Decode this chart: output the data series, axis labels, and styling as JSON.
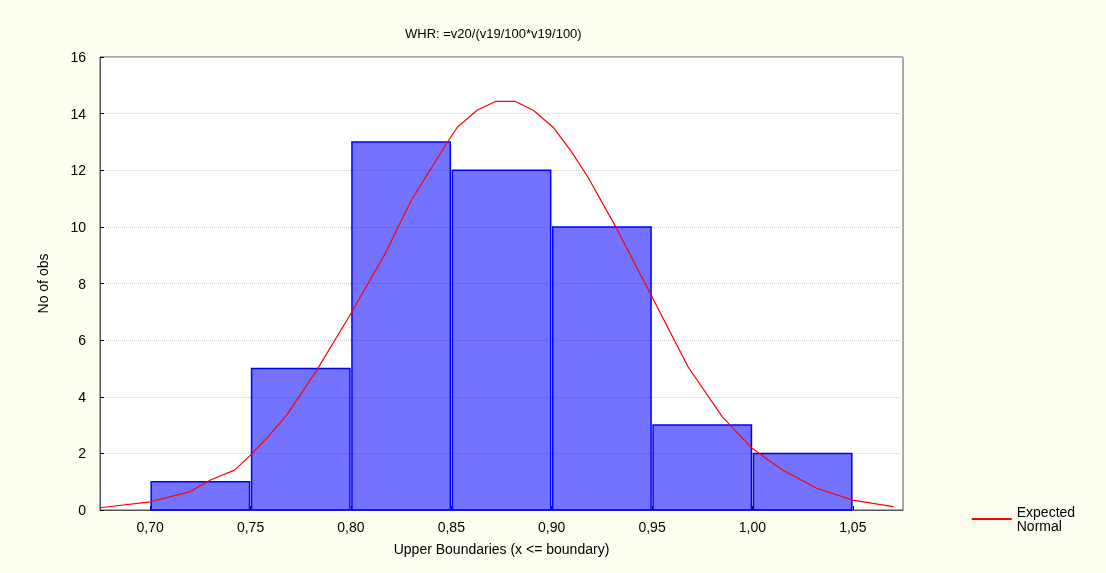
{
  "chart_data": {
    "type": "histogram",
    "title": "WHR: =v20/(v19/100*v19/100)",
    "xlabel": "Upper Boundaries (x <= boundary)",
    "ylabel": "No of obs",
    "bins": [
      0.7,
      0.75,
      0.8,
      0.85,
      0.9,
      0.95,
      1.0,
      1.05
    ],
    "values": [
      1,
      5,
      13,
      12,
      10,
      3,
      2
    ],
    "color": "#0000ff",
    "series": [
      {
        "type": "line",
        "name": "Expected Normal",
        "color": "#ff0000",
        "x": [
          0.675,
          0.7,
          0.72,
          0.73,
          0.742,
          0.75,
          0.758,
          0.768,
          0.783,
          0.8,
          0.817,
          0.83,
          0.848,
          0.853,
          0.863,
          0.872,
          0.882,
          0.891,
          0.901,
          0.91,
          0.918,
          0.932,
          0.95,
          0.968,
          0.985,
          1.0,
          1.015,
          1.032,
          1.05,
          1.07
        ],
        "values": [
          0.08,
          0.29,
          0.65,
          1.06,
          1.41,
          1.94,
          2.53,
          3.35,
          4.94,
          6.94,
          9.05,
          10.93,
          12.99,
          13.52,
          14.13,
          14.43,
          14.43,
          14.11,
          13.5,
          12.64,
          11.76,
          9.99,
          7.52,
          5.05,
          3.29,
          2.17,
          1.41,
          0.77,
          0.35,
          0.12
        ]
      }
    ],
    "xlim": [
      0.675,
      1.075
    ],
    "xticks": [
      {
        "value": 0.7,
        "label": "0,70"
      },
      {
        "value": 0.75,
        "label": "0,75"
      },
      {
        "value": 0.8,
        "label": "0,80"
      },
      {
        "value": 0.85,
        "label": "0,85"
      },
      {
        "value": 0.9,
        "label": "0,90"
      },
      {
        "value": 0.95,
        "label": "0,95"
      },
      {
        "value": 1.0,
        "label": "1,00"
      },
      {
        "value": 1.05,
        "label": "1,05"
      }
    ],
    "ylim": [
      0,
      16
    ],
    "yticks": [
      0,
      2,
      4,
      6,
      8,
      10,
      12,
      14,
      16
    ],
    "grid": "y",
    "legend": "bottom right",
    "marker": "none",
    "line_style": "solid"
  }
}
